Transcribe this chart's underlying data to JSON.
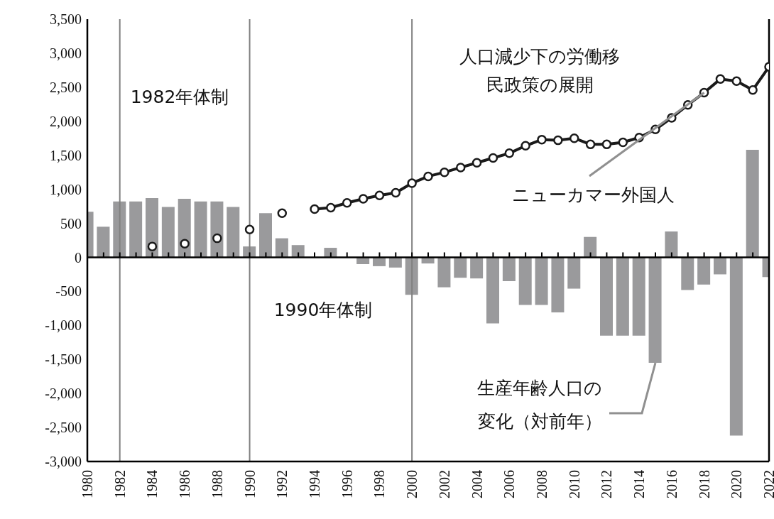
{
  "chart_data": {
    "type": "bar",
    "x": [
      1980,
      1981,
      1982,
      1983,
      1984,
      1985,
      1986,
      1987,
      1988,
      1989,
      1990,
      1991,
      1992,
      1993,
      1994,
      1995,
      1996,
      1997,
      1998,
      1999,
      2000,
      2001,
      2002,
      2003,
      2004,
      2005,
      2006,
      2007,
      2008,
      2009,
      2010,
      2011,
      2012,
      2013,
      2014,
      2015,
      2016,
      2017,
      2018,
      2019,
      2020,
      2021,
      2022
    ],
    "series": [
      {
        "color": "#9a9a9c",
        "values": [
          670,
          450,
          820,
          820,
          870,
          740,
          860,
          820,
          820,
          740,
          160,
          650,
          280,
          180,
          0,
          140,
          0,
          -100,
          -130,
          -150,
          -550,
          -90,
          -440,
          -300,
          -310,
          -970,
          -350,
          -700,
          -700,
          -810,
          -460,
          300,
          -1150,
          -1150,
          -1150,
          -1550,
          380,
          -480,
          -400,
          -250,
          -2620,
          1580,
          -290
        ]
      },
      {
        "type": "line",
        "color": "#1a1a1a",
        "values": [
          null,
          null,
          null,
          null,
          160,
          null,
          200,
          null,
          280,
          null,
          410,
          null,
          650,
          null,
          710,
          730,
          800,
          860,
          910,
          950,
          1090,
          1190,
          1250,
          1320,
          1390,
          1460,
          1530,
          1640,
          1730,
          1720,
          1750,
          1660,
          1660,
          1690,
          1760,
          1880,
          2050,
          2240,
          2420,
          2620,
          2590,
          2460,
          2800
        ]
      }
    ],
    "xlim": [
      1980,
      2022
    ],
    "xticks": [
      1980,
      {
        "value": 1981,
        "label": null
      },
      1982,
      {
        "value": 1983,
        "label": null
      },
      1984,
      {
        "value": 1985,
        "label": null
      },
      1986,
      {
        "value": 1987,
        "label": null
      },
      1988,
      {
        "value": 1989,
        "label": null
      },
      1990,
      {
        "value": 1991,
        "label": null
      },
      1992,
      {
        "value": 1993,
        "label": null
      },
      1994,
      {
        "value": 1995,
        "label": null
      },
      1996,
      {
        "value": 1997,
        "label": null
      },
      1998,
      {
        "value": 1999,
        "label": null
      },
      2000,
      {
        "value": 2001,
        "label": null
      },
      2002,
      {
        "value": 2003,
        "label": null
      },
      2004,
      {
        "value": 2005,
        "label": null
      },
      2006,
      {
        "value": 2007,
        "label": null
      },
      2008,
      {
        "value": 2009,
        "label": null
      },
      2010,
      {
        "value": 2011,
        "label": null
      },
      2012,
      {
        "value": 2013,
        "label": null
      },
      2014,
      {
        "value": 2015,
        "label": null
      },
      2016,
      {
        "value": 2017,
        "label": null
      },
      2018,
      {
        "value": 2019,
        "label": null
      },
      2020,
      {
        "value": 2021,
        "label": null
      },
      2022
    ],
    "ylim": [
      -3000,
      3500
    ],
    "yticks": [
      {
        "value": -3000,
        "label": "-3,000"
      },
      {
        "value": -2500,
        "label": "-2,500"
      },
      {
        "value": -2000,
        "label": "-2,000"
      },
      {
        "value": -1500,
        "label": "-1,500"
      },
      {
        "value": -1000,
        "label": "-1,000"
      },
      {
        "value": -500,
        "label": "-500"
      },
      0,
      500,
      {
        "value": 1000,
        "label": "1,000"
      },
      {
        "value": 1500,
        "label": "1,500"
      },
      {
        "value": 2000,
        "label": "2,000"
      },
      {
        "value": 2500,
        "label": "2,500"
      },
      {
        "value": 3000,
        "label": "3,000"
      },
      {
        "value": 3500,
        "label": "3,500"
      }
    ],
    "ref_lines": [
      {
        "axis": "x",
        "value": 1982,
        "color": "#808080"
      },
      {
        "axis": "x",
        "value": 1990,
        "color": "#808080"
      },
      {
        "axis": "x",
        "value": 2000,
        "color": "#808080"
      }
    ],
    "marker": "circle",
    "grid": false,
    "legend": false,
    "annotations": [
      "1982年体制",
      "1990年体制",
      "人口減少下の労働移民政策の展開",
      {
        "text": "ニューカマー外国人",
        "x": 2018,
        "y": 2420
      },
      {
        "text": "生産年齢人口の変化（対前年）",
        "x": 2015,
        "y": -1550
      }
    ]
  }
}
